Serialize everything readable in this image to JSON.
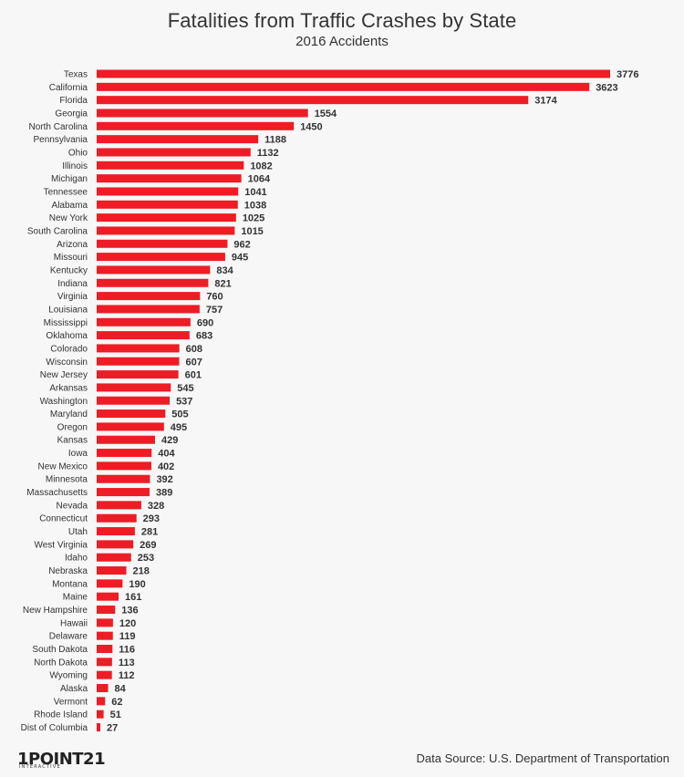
{
  "header": {
    "title": "Fatalities from Traffic Crashes by State",
    "subtitle": "2016 Accidents"
  },
  "footer": {
    "logo_text": "1POINT21",
    "logo_subtext": "INTERACTIVE",
    "source": "Data Source: U.S. Department of Transportation"
  },
  "colors": {
    "bar": "#ee1c24",
    "text": "#333333",
    "background": "#f7f7f7"
  },
  "chart_data": {
    "type": "bar",
    "orientation": "horizontal",
    "title": "Fatalities from Traffic Crashes by State",
    "subtitle": "2016 Accidents",
    "xlabel": "",
    "ylabel": "",
    "grid": false,
    "legend": "none",
    "xlim": [
      0,
      3776
    ],
    "categories": [
      "Texas",
      "California",
      "Florida",
      "Georgia",
      "North Carolina",
      "Pennsylvania",
      "Ohio",
      "Illinois",
      "Michigan",
      "Tennessee",
      "Alabama",
      "New York",
      "South Carolina",
      "Arizona",
      "Missouri",
      "Kentucky",
      "Indiana",
      "Virginia",
      "Louisiana",
      "Mississippi",
      "Oklahoma",
      "Colorado",
      "Wisconsin",
      "New Jersey",
      "Arkansas",
      "Washington",
      "Maryland",
      "Oregon",
      "Kansas",
      "Iowa",
      "New Mexico",
      "Minnesota",
      "Massachusetts",
      "Nevada",
      "Connecticut",
      "Utah",
      "West Virginia",
      "Idaho",
      "Nebraska",
      "Montana",
      "Maine",
      "New Hampshire",
      "Hawaii",
      "Delaware",
      "South Dakota",
      "North Dakota",
      "Wyoming",
      "Alaska",
      "Vermont",
      "Rhode Island",
      "Dist of Columbia"
    ],
    "values": [
      3776,
      3623,
      3174,
      1554,
      1450,
      1188,
      1132,
      1082,
      1064,
      1041,
      1038,
      1025,
      1015,
      962,
      945,
      834,
      821,
      760,
      757,
      690,
      683,
      608,
      607,
      601,
      545,
      537,
      505,
      495,
      429,
      404,
      402,
      392,
      389,
      328,
      293,
      281,
      269,
      253,
      218,
      190,
      161,
      136,
      120,
      119,
      116,
      113,
      112,
      84,
      62,
      51,
      27
    ]
  }
}
